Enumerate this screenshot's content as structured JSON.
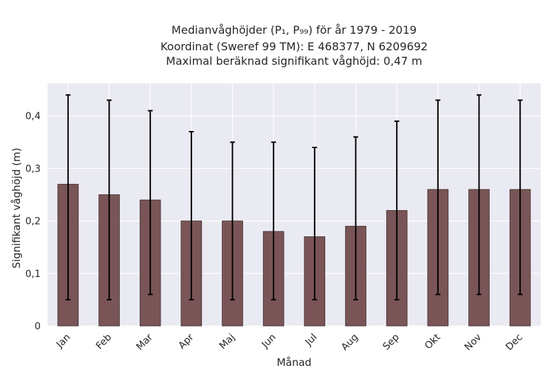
{
  "title": {
    "line1": "Medianvåghöjder (P₁, P₉₉) för år 1979 - 2019",
    "line2": "Koordinat (Sweref 99 TM): E 468377, N 6209692",
    "line3": "Maximal beräknad signifikant våghöjd: 0,47 m"
  },
  "chart_data": {
    "type": "bar",
    "title": "Medianvåghöjder (P₁, P₉₉) för år 1979 - 2019",
    "xlabel": "Månad",
    "ylabel": "Signifikant våghöjd (m)",
    "categories": [
      "Jan",
      "Feb",
      "Mar",
      "Apr",
      "Maj",
      "Jun",
      "Jul",
      "Aug",
      "Sep",
      "Okt",
      "Nov",
      "Dec"
    ],
    "values": [
      0.27,
      0.25,
      0.24,
      0.2,
      0.2,
      0.18,
      0.17,
      0.19,
      0.22,
      0.26,
      0.26,
      0.26
    ],
    "p1": [
      0.05,
      0.05,
      0.06,
      0.05,
      0.05,
      0.05,
      0.05,
      0.05,
      0.05,
      0.06,
      0.06,
      0.06
    ],
    "p99": [
      0.44,
      0.43,
      0.41,
      0.37,
      0.35,
      0.35,
      0.34,
      0.36,
      0.39,
      0.43,
      0.44,
      0.43
    ],
    "yticks": [
      0,
      0.1,
      0.2,
      0.3,
      0.4
    ],
    "ytick_labels": [
      "0",
      "0,1",
      "0,2",
      "0,3",
      "0,4"
    ],
    "ylim": [
      0,
      0.462
    ],
    "grid": true,
    "colors": {
      "bar": "#7a5557",
      "bar_edge": "#3d2a2b",
      "background": "#eaeaf2",
      "grid": "#ffffff",
      "errorbar": "#000000"
    }
  }
}
